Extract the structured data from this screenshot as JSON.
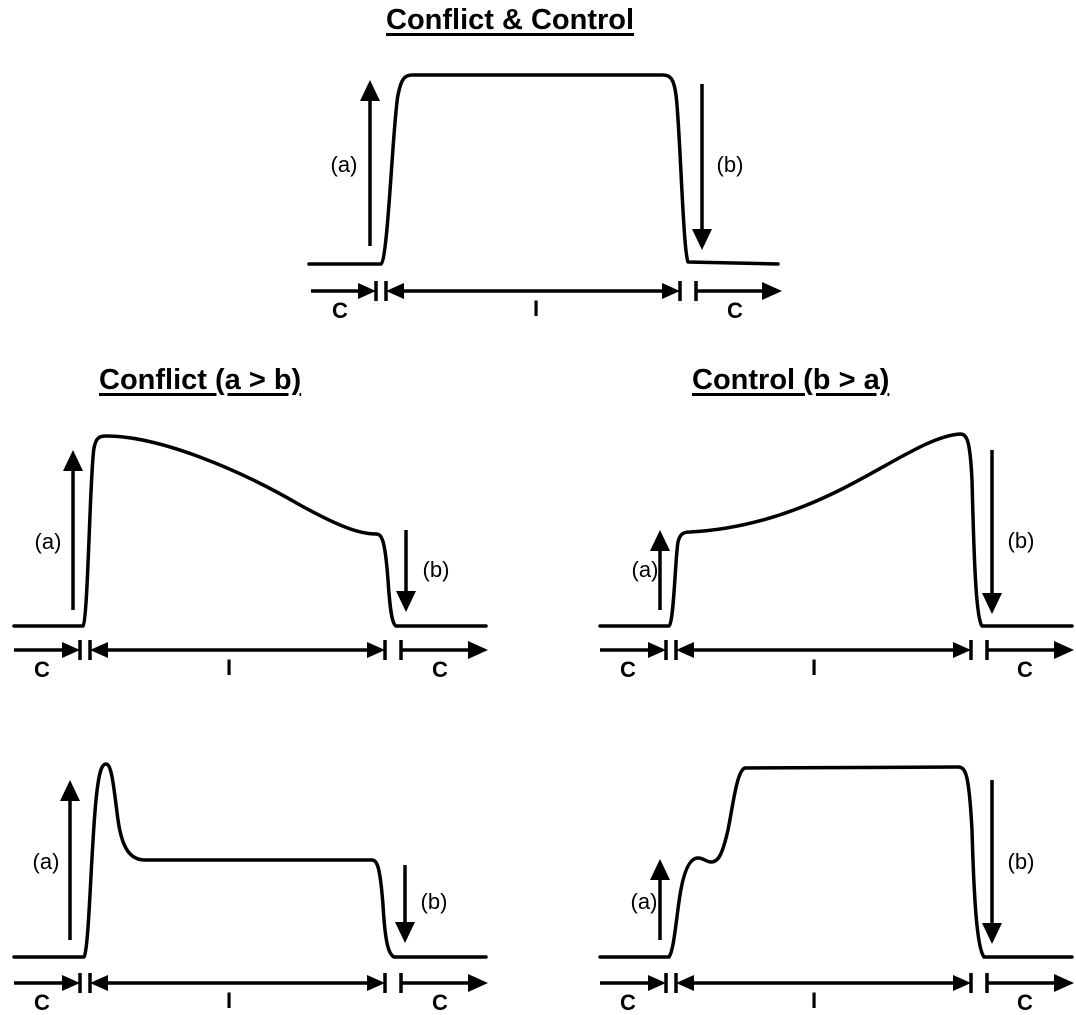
{
  "titles": {
    "top": "Conflict & Control",
    "left": "Conflict (a > b)",
    "right": "Control (b > a)"
  },
  "labels": {
    "a": "(a)",
    "b": "(b)",
    "c": "C",
    "i": "I"
  },
  "panels": [
    {
      "id": "both",
      "group": "Conflict & Control"
    },
    {
      "id": "conflict-1",
      "group": "Conflict (a > b)"
    },
    {
      "id": "control-1",
      "group": "Control (b > a)"
    },
    {
      "id": "conflict-2",
      "group": "Conflict (a > b)"
    },
    {
      "id": "control-2",
      "group": "Control (b > a)"
    }
  ],
  "colors": {
    "ink": "#000000",
    "background": "#ffffff"
  }
}
